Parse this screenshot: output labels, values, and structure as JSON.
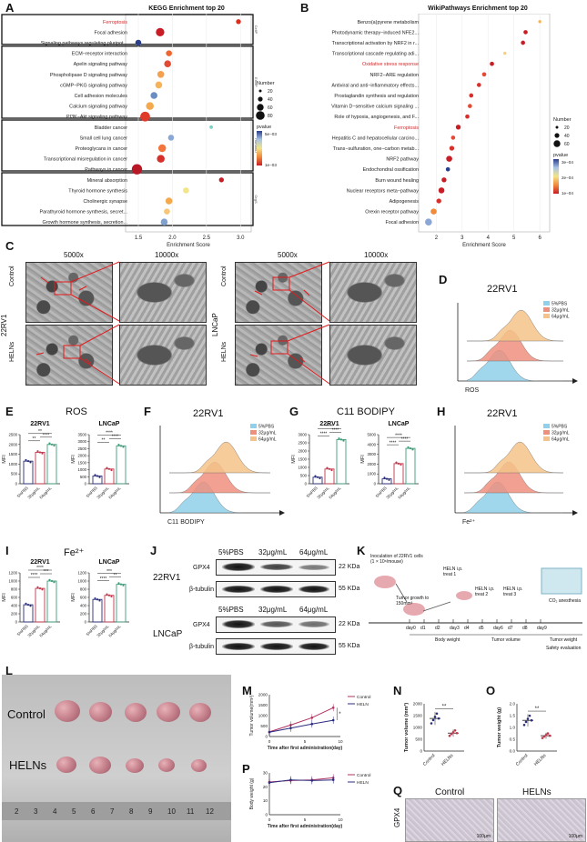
{
  "panels": {
    "A": "A",
    "B": "B",
    "C": "C",
    "D": "D",
    "E": "E",
    "F": "F",
    "G": "G",
    "H": "H",
    "I": "I",
    "J": "J",
    "K": "K",
    "L": "L",
    "M": "M",
    "N": "N",
    "O": "O",
    "P": "P",
    "Q": "Q"
  },
  "kegg": {
    "title": "KEGG Enrichment top 20",
    "xlabel": "Enrichment Score",
    "xticks": [
      "1.5",
      "2.0",
      "2.5",
      "3.0"
    ],
    "groups": [
      "CellP",
      "EnvIP",
      "HumanD",
      "OrgS"
    ],
    "terms": [
      {
        "label": "Ferroptosis",
        "x": 2.97,
        "size": 20,
        "color": "#d7301f",
        "highlight": true
      },
      {
        "label": "Focal adhesion",
        "x": 1.82,
        "size": 60,
        "color": "#c81d25",
        "highlight": false
      },
      {
        "label": "Signaling pathways regulating pluripot...",
        "x": 1.5,
        "size": 30,
        "color": "#2a3e8c",
        "highlight": false
      },
      {
        "label": "ECM−receptor interaction",
        "x": 1.95,
        "size": 30,
        "color": "#f0652e",
        "highlight": false
      },
      {
        "label": "Apelin signaling pathway",
        "x": 1.93,
        "size": 40,
        "color": "#e34a33",
        "highlight": false
      },
      {
        "label": "Phospholipase D signaling pathway",
        "x": 1.83,
        "size": 40,
        "color": "#f5a04d",
        "highlight": false
      },
      {
        "label": "cGMP−PKG signaling pathway",
        "x": 1.8,
        "size": 40,
        "color": "#f7b35a",
        "highlight": false
      },
      {
        "label": "Cell adhesion molecules",
        "x": 1.73,
        "size": 40,
        "color": "#6b8ec2",
        "highlight": false
      },
      {
        "label": "Calcium signaling pathway",
        "x": 1.67,
        "size": 50,
        "color": "#f4a94d",
        "highlight": false
      },
      {
        "label": "PI3K−Akt signaling pathway",
        "x": 1.6,
        "size": 80,
        "color": "#e03a2a",
        "highlight": false
      },
      {
        "label": "Bladder cancer",
        "x": 2.57,
        "size": 10,
        "color": "#7bd0c6",
        "highlight": false
      },
      {
        "label": "Small cell lung cancer",
        "x": 1.98,
        "size": 30,
        "color": "#8aa7d6",
        "highlight": false
      },
      {
        "label": "Proteoglycans in cancer",
        "x": 1.85,
        "size": 50,
        "color": "#f3753c",
        "highlight": false
      },
      {
        "label": "Transcriptional misregulation in cancer",
        "x": 1.83,
        "size": 50,
        "color": "#d7302a",
        "highlight": false
      },
      {
        "label": "Pathways in cancer",
        "x": 1.48,
        "size": 90,
        "color": "#b81726",
        "highlight": false
      },
      {
        "label": "Mineral absorption",
        "x": 2.72,
        "size": 20,
        "color": "#c81d25",
        "highlight": false
      },
      {
        "label": "Thyroid hormone synthesis",
        "x": 2.2,
        "size": 30,
        "color": "#f2e48a",
        "highlight": false
      },
      {
        "label": "Cholinergic synapse",
        "x": 1.95,
        "size": 40,
        "color": "#f4a94d",
        "highlight": false
      },
      {
        "label": "Parathyroid hormone synthesis, secret...",
        "x": 1.92,
        "size": 30,
        "color": "#f7c777",
        "highlight": false
      },
      {
        "label": "Growth hormone synthesis, secretion...",
        "x": 1.88,
        "size": 40,
        "color": "#7fa1cf",
        "highlight": false
      }
    ],
    "legend": {
      "number_title": "Number",
      "numbers": [
        "20",
        "40",
        "60",
        "80"
      ],
      "pvalue_title": "pvalue",
      "pticks": [
        "5e−03",
        "1e−03"
      ]
    }
  },
  "wiki": {
    "title": "WikiPathways Enrichment top 20",
    "xlabel": "Enrichment Score",
    "xticks": [
      "2",
      "3",
      "4",
      "5",
      "6"
    ],
    "terms": [
      {
        "label": "Benzo(a)pyrene metabolism",
        "x": 6.0,
        "size": 8,
        "color": "#f3b454",
        "highlight": false
      },
      {
        "label": "Photodynamic therapy−induced NFE2...",
        "x": 5.45,
        "size": 15,
        "color": "#c81d25",
        "highlight": false
      },
      {
        "label": "Transcriptional activation by NRF2 in r...",
        "x": 5.35,
        "size": 15,
        "color": "#c81d25",
        "highlight": false
      },
      {
        "label": "Transcriptional cascade regulating adi...",
        "x": 4.65,
        "size": 8,
        "color": "#f7d07a",
        "highlight": false
      },
      {
        "label": "Oxidative stress response",
        "x": 4.15,
        "size": 15,
        "color": "#c81d25",
        "highlight": true
      },
      {
        "label": "NRF2−ARE regulation",
        "x": 3.85,
        "size": 15,
        "color": "#e34a33",
        "highlight": false
      },
      {
        "label": "Antiviral and anti−inflammatory effects...",
        "x": 3.65,
        "size": 15,
        "color": "#d7302a",
        "highlight": false
      },
      {
        "label": "Prostaglandin synthesis and regulation",
        "x": 3.35,
        "size": 15,
        "color": "#d7302a",
        "highlight": false
      },
      {
        "label": "Vitamin D−sensitive calcium signaling ...",
        "x": 3.3,
        "size": 15,
        "color": "#e34a33",
        "highlight": false
      },
      {
        "label": "Role of hypoxia, angiogenesis, and F...",
        "x": 3.2,
        "size": 15,
        "color": "#d7302a",
        "highlight": false
      },
      {
        "label": "Ferroptosis",
        "x": 2.85,
        "size": 20,
        "color": "#c81d25",
        "highlight": true
      },
      {
        "label": "Hepatitis C and hepatocellular carcino...",
        "x": 2.65,
        "size": 15,
        "color": "#e34a33",
        "highlight": false
      },
      {
        "label": "Trans−sulfuration, one−carbon metab...",
        "x": 2.6,
        "size": 20,
        "color": "#d7302a",
        "highlight": false
      },
      {
        "label": "NRF2 pathway",
        "x": 2.5,
        "size": 30,
        "color": "#c81d25",
        "highlight": false
      },
      {
        "label": "Endochondral ossification",
        "x": 2.45,
        "size": 15,
        "color": "#2a3e8c",
        "highlight": false
      },
      {
        "label": "Burn wound healing",
        "x": 2.3,
        "size": 20,
        "color": "#c81d25",
        "highlight": false
      },
      {
        "label": "Nuclear receptors meta−pathway",
        "x": 2.2,
        "size": 30,
        "color": "#c81d25",
        "highlight": false
      },
      {
        "label": "Adipogenesis",
        "x": 2.1,
        "size": 20,
        "color": "#d7302a",
        "highlight": false
      },
      {
        "label": "Orexin receptor pathway",
        "x": 1.9,
        "size": 30,
        "color": "#f08a3c",
        "highlight": false
      },
      {
        "label": "Focal adhesion",
        "x": 1.7,
        "size": 40,
        "color": "#8aa7d6",
        "highlight": false
      }
    ],
    "legend": {
      "number_title": "Number",
      "numbers": [
        "20",
        "40",
        "60"
      ],
      "pvalue_title": "pvalue",
      "pticks": [
        "3e−04",
        "2e−04",
        "1e−04"
      ]
    }
  },
  "tem": {
    "mag1": "5000x",
    "mag2": "10000x",
    "mag3": "5000x",
    "mag4": "10000x",
    "row_control": "Control",
    "row_heln": "HELNs",
    "cell1": "22RV1",
    "cell2": "LNCaP"
  },
  "flow_legend": [
    "5%PBS",
    "32μg/mL",
    "64μg/mL"
  ],
  "flow_colors": [
    "#8fd0ea",
    "#ef8f7e",
    "#f5c38a"
  ],
  "D": {
    "title": "22RV1",
    "xlabel": "ROS"
  },
  "F": {
    "title": "22RV1",
    "xlabel": "C11 BODIPY"
  },
  "H": {
    "title": "22RV1",
    "xlabel": "Fe²⁺"
  },
  "E": {
    "title": "ROS",
    "sub1": "22RV1",
    "sub2": "LNCaP",
    "ylabel": "MFI",
    "yticks1": [
      "0",
      "500",
      "1000",
      "1500",
      "2000",
      "2500"
    ],
    "yticks2": [
      "0",
      "500",
      "1000",
      "1500",
      "2000",
      "2500",
      "3000",
      "3500"
    ],
    "groups": [
      "5%PBS",
      "32μg/mL",
      "64μg/mL"
    ],
    "values1": [
      1150,
      1600,
      2000
    ],
    "values2": [
      550,
      1050,
      2700
    ],
    "sig1": [
      "**",
      "****",
      "**"
    ],
    "sig2": [
      "**",
      "****",
      "****"
    ]
  },
  "G": {
    "title": "C11 BODIPY",
    "sub1": "22RV1",
    "sub2": "LNCaP",
    "ylabel": "MFI",
    "yticks1": [
      "0",
      "500",
      "1000",
      "1500",
      "2000",
      "2500",
      "3000"
    ],
    "yticks2": [
      "0",
      "1000",
      "2000",
      "3000",
      "4000",
      "5000"
    ],
    "groups": [
      "5%PBS",
      "32μg/mL",
      "64μg/mL"
    ],
    "values1": [
      400,
      900,
      2700
    ],
    "values2": [
      500,
      2050,
      3600
    ],
    "sig1": [
      "****",
      "****",
      "****"
    ],
    "sig2": [
      "****",
      "****",
      "****"
    ]
  },
  "I": {
    "title": "Fe²⁺",
    "sub1": "22RV1",
    "sub2": "LNCaP",
    "ylabel": "MFI",
    "yticks1": [
      "0",
      "200",
      "400",
      "600",
      "800",
      "1000",
      "1200"
    ],
    "yticks2": [
      "0",
      "200",
      "400",
      "600",
      "800",
      "1000",
      "1200"
    ],
    "groups": [
      "5%PBS",
      "32μg/mL",
      "64μg/mL"
    ],
    "values1": [
      420,
      820,
      1000
    ],
    "values2": [
      550,
      650,
      920
    ],
    "sig1": [
      "****",
      "***",
      "****"
    ],
    "sig2": [
      "****",
      "**",
      "***"
    ]
  },
  "J": {
    "cell1": "22RV1",
    "cell2": "LNCaP",
    "cols": [
      "5%PBS",
      "32μg/mL",
      "64μg/mL"
    ],
    "prot1": "GPX4",
    "prot2": "β-tubulin",
    "kda1": "22 KDa",
    "kda2": "55 KDa"
  },
  "K": {
    "inoc": "Inoculation of 22RV1 cells (1 × 10⁶/mouse)",
    "growth": "Tumor growth to 150mm³",
    "t1": "HELN i.p. treat 1",
    "t2": "HELN i.p. treat 2",
    "t3": "HELN i.p. treat 3",
    "co2": "CO₂ anesthesia",
    "days": [
      "day0",
      "d1",
      "d2",
      "day3",
      "d4",
      "d5",
      "day6",
      "d7",
      "d8",
      "day9"
    ],
    "bw": "Body weight",
    "tv": "Tumor volume",
    "tw": "Tumor weight",
    "se": "Safety evaluation"
  },
  "L": {
    "control": "Control",
    "heln": "HELNs",
    "ruler": [
      "2",
      "3",
      "4",
      "5",
      "6",
      "7",
      "8",
      "9",
      "10",
      "11",
      "12"
    ]
  },
  "M": {
    "ylabel": "Tumor volume(mm³)",
    "xlabel": "Time after first administration(day)",
    "legend": [
      "Control",
      "HELN"
    ],
    "xticks": [
      "0",
      "5",
      "10"
    ],
    "yticks": [
      "0",
      "500",
      "1000",
      "1500",
      "2000"
    ],
    "x": [
      0,
      3,
      6,
      9
    ],
    "control": [
      220,
      550,
      900,
      1380
    ],
    "heln": [
      210,
      400,
      600,
      780
    ],
    "sig": "*"
  },
  "N": {
    "ylabel": "Tumor volume (mm³)",
    "yticks": [
      "0",
      "500",
      "1000",
      "1500",
      "2000"
    ],
    "groups": [
      "Control",
      "HELNs"
    ],
    "values": [
      1380,
      760
    ],
    "sig": "**"
  },
  "O": {
    "ylabel": "Tumor weight (g)",
    "yticks": [
      "0.0",
      "0.5",
      "1.0",
      "1.5",
      "2.0"
    ],
    "groups": [
      "Control",
      "HELNs"
    ],
    "values": [
      1.3,
      0.65
    ],
    "sig": "**"
  },
  "P": {
    "ylabel": "Body weight (g)",
    "xlabel": "Time after first administration(day)",
    "legend": [
      "Control",
      "HELN"
    ],
    "xticks": [
      "0",
      "5",
      "10"
    ],
    "yticks": [
      "0",
      "10",
      "20",
      "30"
    ],
    "x": [
      0,
      3,
      6,
      9
    ],
    "control": [
      23.5,
      24.5,
      25,
      26.5
    ],
    "heln": [
      23,
      25,
      24.5,
      25
    ]
  },
  "Q": {
    "control": "Control",
    "heln": "HELNs",
    "row": "GPX4",
    "scale": "100μm"
  },
  "colors": {
    "red": "#d62728",
    "navy": "#2b2f7a",
    "control_line": "#b03060",
    "heln_line": "#2c2c80"
  }
}
